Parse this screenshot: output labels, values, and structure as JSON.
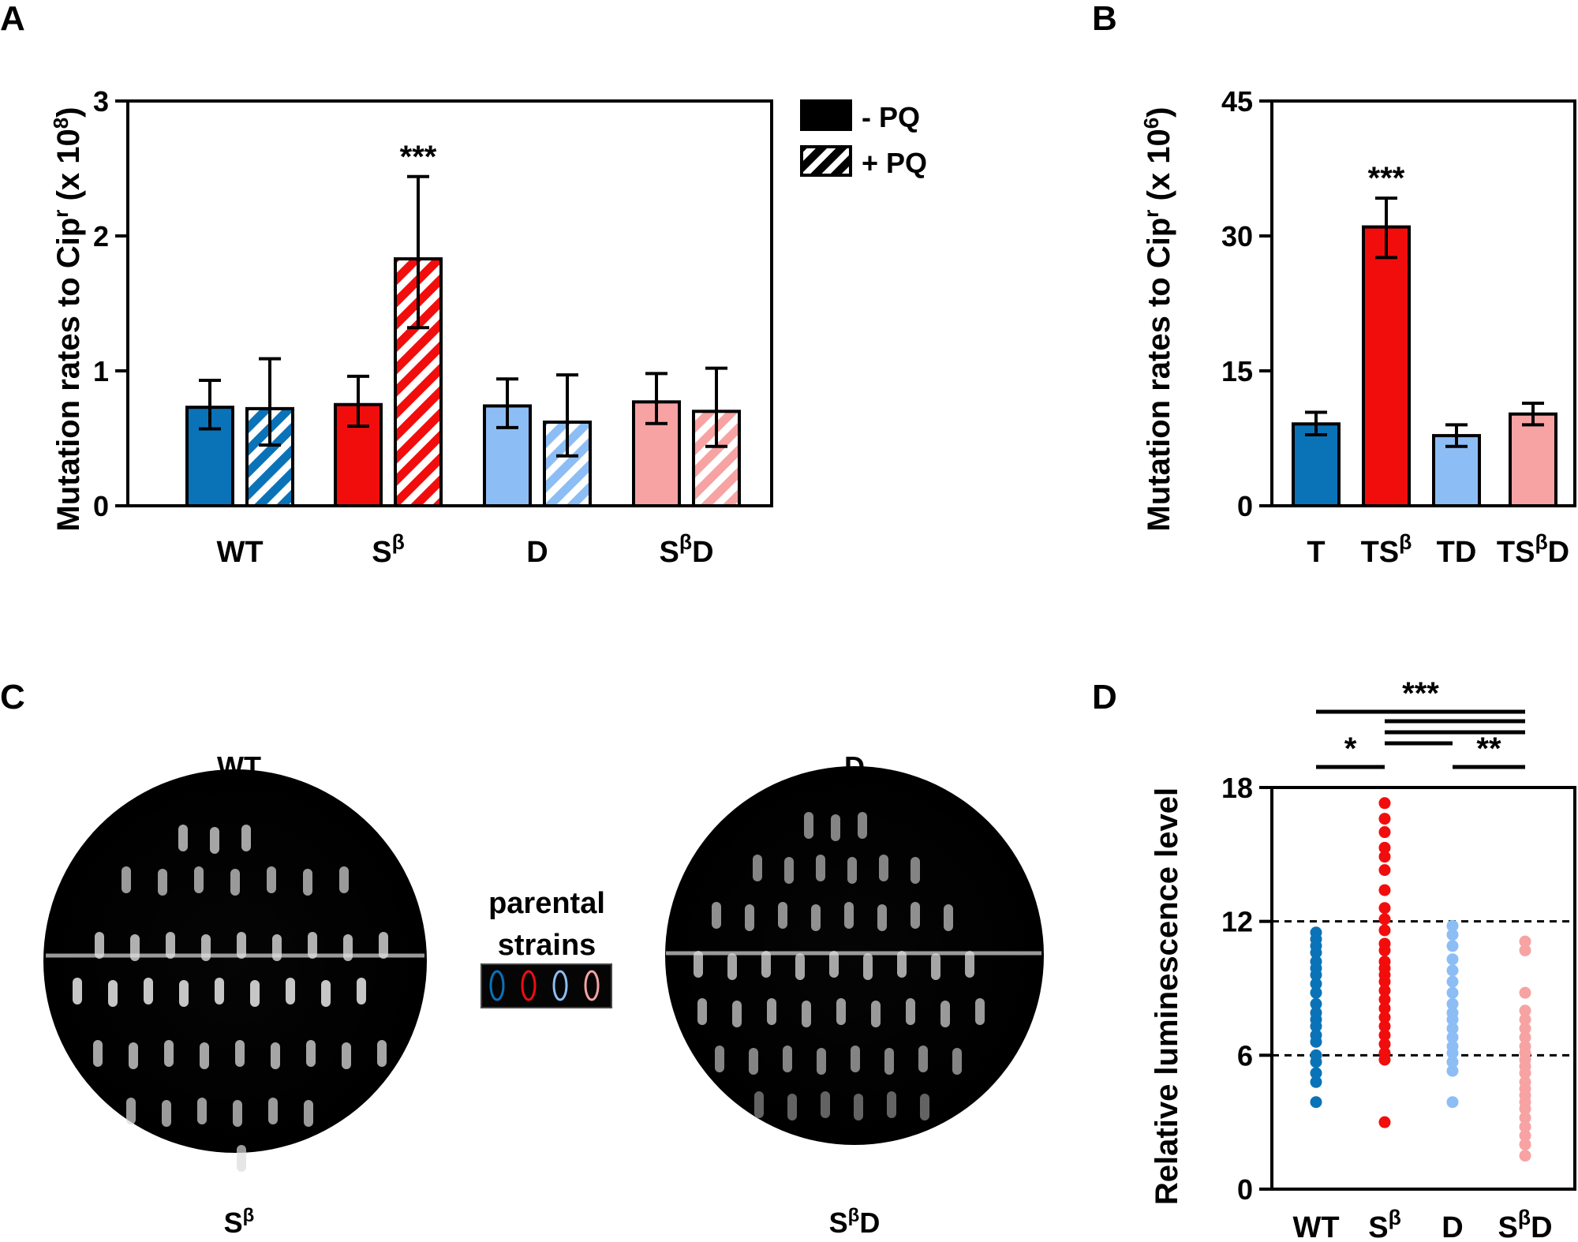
{
  "colors": {
    "wt": "#0a73b8",
    "sb": "#f20d0d",
    "d": "#8dbdf5",
    "sbd": "#f7a3a3",
    "axis": "#000000",
    "plate": "#000000",
    "colony": "#dcdcdc"
  },
  "panels": {
    "a": "A",
    "b": "B",
    "c": "C",
    "d": "D"
  },
  "chart_data": [
    {
      "id": "A",
      "type": "bar",
      "title": "",
      "ylabel": "Mutation rates to Cip",
      "ylabel_sup": "r",
      "ylabel_suffix": " (x 10",
      "ylabel_suffix_sup": "8",
      "ylabel_close": ")",
      "ylim": [
        0,
        3
      ],
      "yticks": [
        "0",
        "1",
        "2",
        "3"
      ],
      "categories": [
        {
          "main": "WT",
          "sup": "",
          "tail": ""
        },
        {
          "main": "S",
          "sup": "β",
          "tail": ""
        },
        {
          "main": "D",
          "sup": "",
          "tail": ""
        },
        {
          "main": "S",
          "sup": "β",
          "tail": "D"
        }
      ],
      "legend": [
        {
          "label": "- PQ",
          "pattern": "solid"
        },
        {
          "label": "+ PQ",
          "pattern": "hatched"
        }
      ],
      "bars": [
        {
          "category": "WT",
          "treatment": "- PQ",
          "value": 0.73,
          "err_low": 0.57,
          "err_high": 0.93,
          "color_key": "wt",
          "hatched": false
        },
        {
          "category": "WT",
          "treatment": "+ PQ",
          "value": 0.72,
          "err_low": 0.45,
          "err_high": 1.09,
          "color_key": "wt",
          "hatched": true
        },
        {
          "category": "Sβ",
          "treatment": "- PQ",
          "value": 0.75,
          "err_low": 0.59,
          "err_high": 0.96,
          "color_key": "sb",
          "hatched": false
        },
        {
          "category": "Sβ",
          "treatment": "+ PQ",
          "value": 1.83,
          "err_low": 1.32,
          "err_high": 2.44,
          "color_key": "sb",
          "hatched": true
        },
        {
          "category": "D",
          "treatment": "- PQ",
          "value": 0.74,
          "err_low": 0.58,
          "err_high": 0.94,
          "color_key": "d",
          "hatched": false
        },
        {
          "category": "D",
          "treatment": "+ PQ",
          "value": 0.62,
          "err_low": 0.37,
          "err_high": 0.97,
          "color_key": "d",
          "hatched": true
        },
        {
          "category": "SβD",
          "treatment": "- PQ",
          "value": 0.77,
          "err_low": 0.61,
          "err_high": 0.98,
          "color_key": "sbd",
          "hatched": false
        },
        {
          "category": "SβD",
          "treatment": "+ PQ",
          "value": 0.7,
          "err_low": 0.44,
          "err_high": 1.02,
          "color_key": "sbd",
          "hatched": true
        }
      ],
      "annotations": [
        {
          "text": "***",
          "bar_index": 3
        }
      ]
    },
    {
      "id": "B",
      "type": "bar",
      "title": "",
      "ylabel": "Mutation rates to Cip",
      "ylabel_sup": "r",
      "ylabel_suffix": " (x 10",
      "ylabel_suffix_sup": "6",
      "ylabel_close": ")",
      "ylim": [
        0,
        45
      ],
      "yticks": [
        "0",
        "15",
        "30",
        "45"
      ],
      "categories": [
        {
          "main": "T",
          "sup": "",
          "tail": ""
        },
        {
          "main": "TS",
          "sup": "β",
          "tail": ""
        },
        {
          "main": "TD",
          "sup": "",
          "tail": ""
        },
        {
          "main": "TS",
          "sup": "β",
          "tail": "D"
        }
      ],
      "bars": [
        {
          "category": "T",
          "value": 9.1,
          "err_low": 7.9,
          "err_high": 10.4,
          "color_key": "wt"
        },
        {
          "category": "TSβ",
          "value": 31.0,
          "err_low": 27.6,
          "err_high": 34.2,
          "color_key": "sb"
        },
        {
          "category": "TD",
          "value": 7.8,
          "err_low": 6.6,
          "err_high": 9.0,
          "color_key": "d"
        },
        {
          "category": "TSβD",
          "value": 10.2,
          "err_low": 9.0,
          "err_high": 11.4,
          "color_key": "sbd"
        }
      ],
      "annotations": [
        {
          "text": "***",
          "bar_index": 1
        }
      ]
    },
    {
      "id": "D",
      "type": "scatter",
      "title": "",
      "ylabel": "Relative luminescence level",
      "ylim": [
        0,
        18
      ],
      "yticks": [
        "0",
        "6",
        "12",
        "18"
      ],
      "reference_lines": [
        6,
        12
      ],
      "categories": [
        {
          "main": "WT",
          "sup": "",
          "tail": ""
        },
        {
          "main": "S",
          "sup": "β",
          "tail": ""
        },
        {
          "main": "D",
          "sup": "",
          "tail": ""
        },
        {
          "main": "S",
          "sup": "β",
          "tail": "D"
        }
      ],
      "series": [
        {
          "name": "WT",
          "color_key": "wt",
          "values": [
            11.5,
            11.2,
            10.9,
            10.6,
            10.2,
            9.9,
            9.6,
            9.2,
            8.8,
            8.3,
            7.9,
            7.6,
            7.3,
            6.9,
            6.6,
            6.0,
            5.7,
            5.2,
            4.8,
            3.9
          ]
        },
        {
          "name": "Sβ",
          "color_key": "sb",
          "values": [
            17.3,
            16.6,
            16.0,
            15.3,
            14.9,
            14.3,
            13.4,
            12.6,
            12.1,
            11.6,
            11.0,
            10.7,
            10.2,
            9.9,
            9.6,
            9.3,
            8.9,
            8.5,
            8.1,
            7.7,
            7.3,
            6.9,
            6.5,
            6.1,
            5.8,
            3.0
          ]
        },
        {
          "name": "D",
          "color_key": "d",
          "values": [
            11.8,
            11.4,
            10.9,
            10.3,
            9.8,
            9.3,
            8.8,
            8.3,
            7.9,
            7.6,
            7.2,
            6.8,
            6.4,
            6.1,
            5.7,
            5.3,
            3.9
          ]
        },
        {
          "name": "SβD",
          "color_key": "sbd",
          "values": [
            11.1,
            10.7,
            8.8,
            8.0,
            7.6,
            7.2,
            6.8,
            6.4,
            6.1,
            5.8,
            5.5,
            5.2,
            4.8,
            4.5,
            4.2,
            3.9,
            3.6,
            3.2,
            2.8,
            2.4,
            2.0,
            1.5
          ]
        }
      ],
      "significance": [
        {
          "from": 0,
          "to": 3,
          "text": "***",
          "level": 1
        },
        {
          "from": 1,
          "to": 3,
          "text": "",
          "level": 2
        },
        {
          "from": 1,
          "to": 3,
          "text": "",
          "level": 3
        },
        {
          "from": 1,
          "to": 2,
          "text": "",
          "level": 4
        },
        {
          "from": 0,
          "to": 1,
          "text": "*",
          "level": 5
        },
        {
          "from": 2,
          "to": 3,
          "text": "**",
          "level": 5
        }
      ]
    }
  ],
  "panel_c": {
    "plate_left": {
      "top_label": "WT",
      "bottom_label": "S",
      "bottom_label_sup": "β",
      "bottom_label_tail": ""
    },
    "plate_right": {
      "top_label": "D",
      "bottom_label": "S",
      "bottom_label_sup": "β",
      "bottom_label_tail": "D"
    },
    "legend_line1": "parental",
    "legend_line2": "strains",
    "legend_color_keys": [
      "wt",
      "sb",
      "d",
      "sbd"
    ]
  }
}
